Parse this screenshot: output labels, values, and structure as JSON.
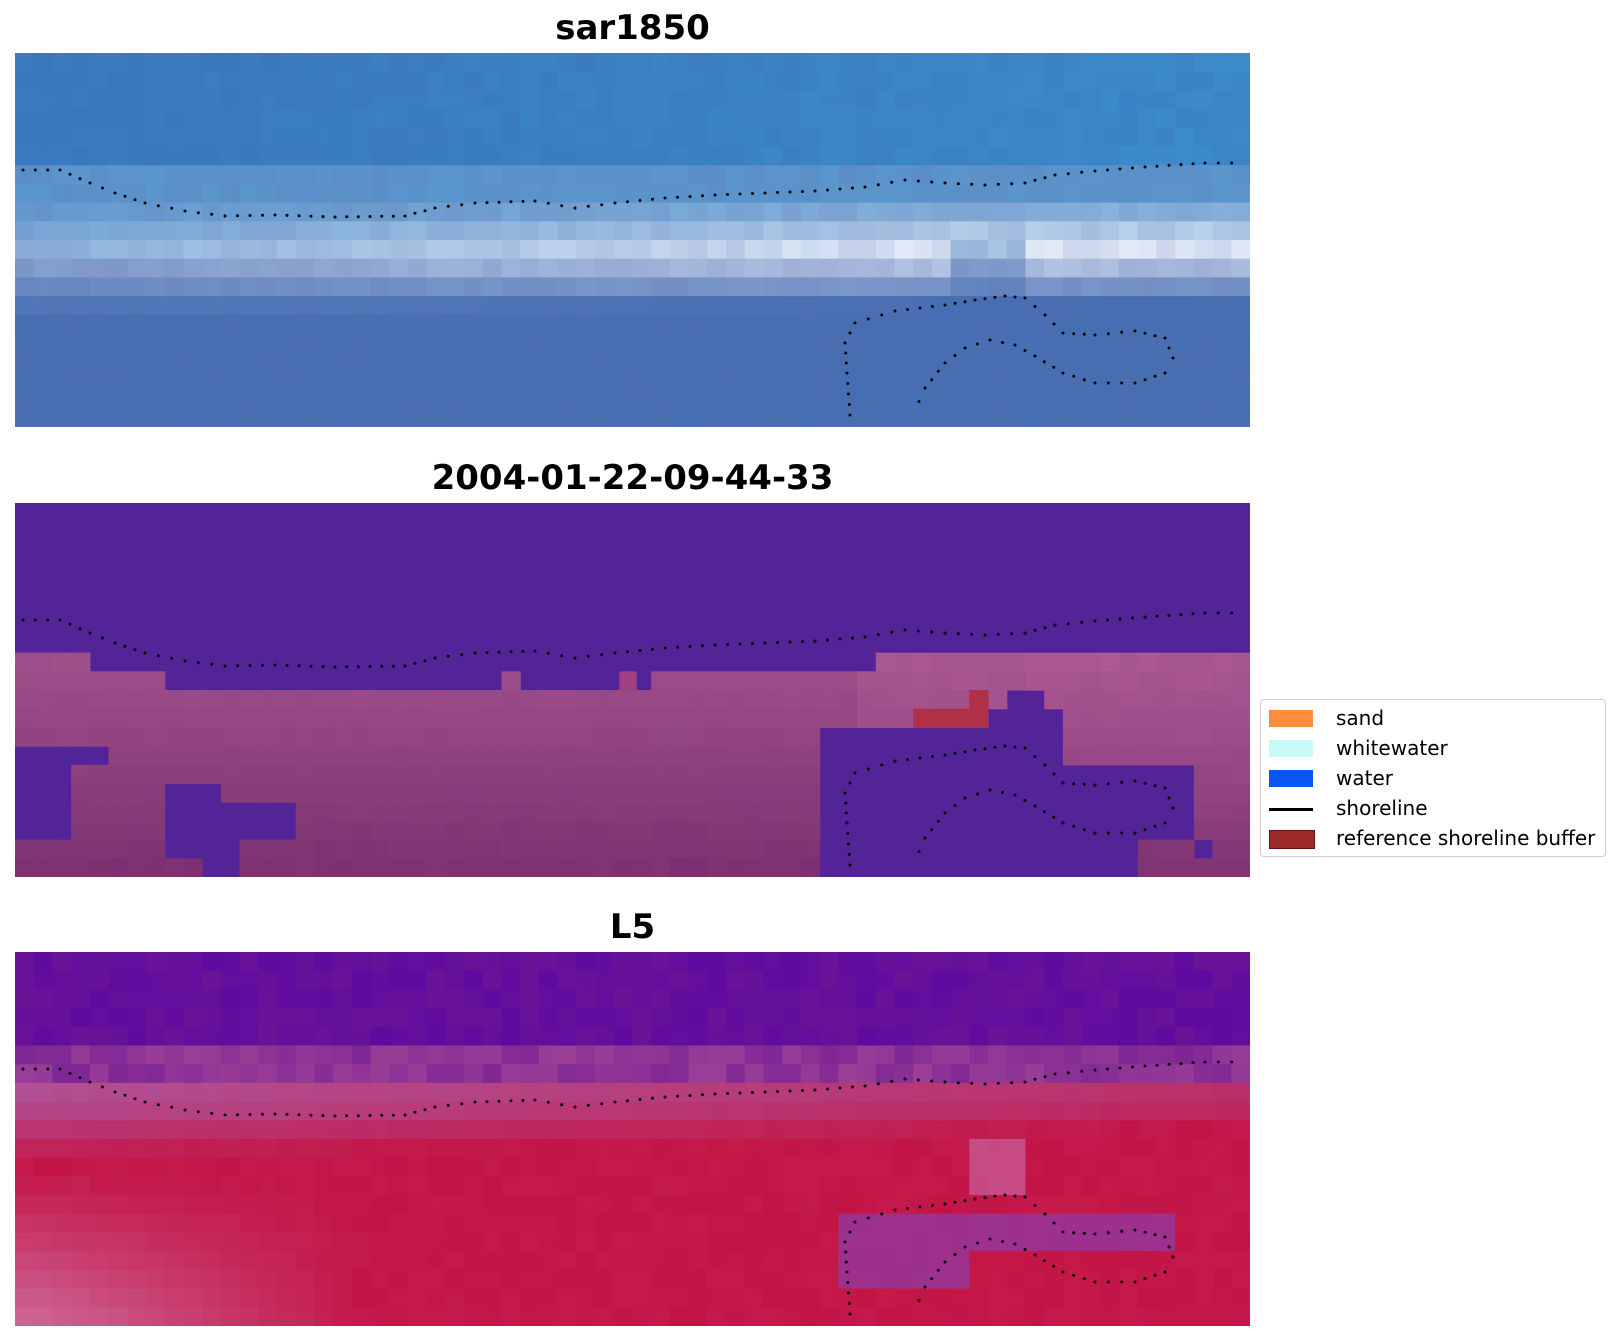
{
  "panels": [
    {
      "title": "sar1850",
      "colormap": "rgb"
    },
    {
      "title": "2004-01-22-09-44-33",
      "colormap": "classified"
    },
    {
      "title": "L5",
      "colormap": "plasma"
    }
  ],
  "legend": {
    "items": [
      {
        "label": "sand",
        "color": "#ff8c3a",
        "kind": "patch"
      },
      {
        "label": "whitewater",
        "color": "#c8fafa",
        "kind": "patch"
      },
      {
        "label": "water",
        "color": "#0a55f5",
        "kind": "patch"
      },
      {
        "label": "shoreline",
        "color": "#000000",
        "kind": "line"
      },
      {
        "label": "reference shoreline buffer",
        "color": "#9c2a2a",
        "kind": "patch"
      }
    ]
  },
  "chart_data": {
    "type": "heatmap",
    "grid": {
      "columns": 66,
      "rows": 20
    },
    "shoreline_dotted": true,
    "legend_placement": "center-right"
  }
}
